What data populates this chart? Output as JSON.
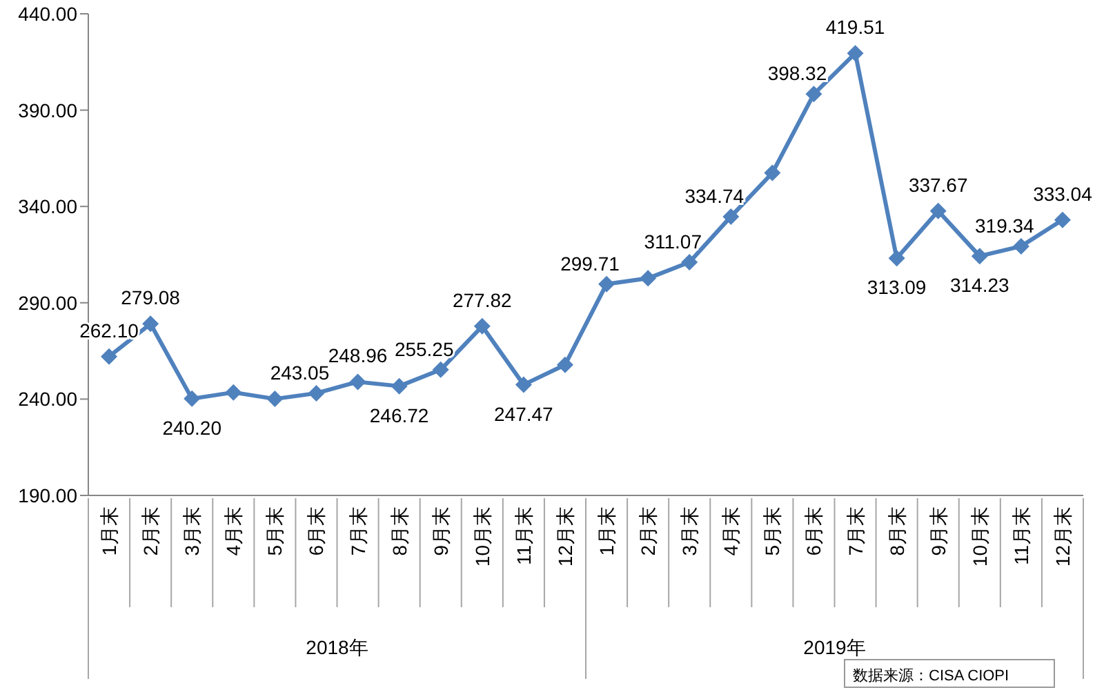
{
  "chart_data": {
    "type": "line",
    "categories": [
      "1月末",
      "2月末",
      "3月末",
      "4月末",
      "5月末",
      "6月末",
      "7月末",
      "8月末",
      "9月末",
      "10月末",
      "11月末",
      "12月末",
      "1月末",
      "2月末",
      "3月末",
      "4月末",
      "5月末",
      "6月末",
      "7月末",
      "8月末",
      "9月末",
      "10月末",
      "11月末",
      "12月末"
    ],
    "series": [
      {
        "color": "#4f81bd",
        "values": [
          262.1,
          279.08,
          240.2,
          243.5,
          240.1,
          243.05,
          248.96,
          246.72,
          255.25,
          277.82,
          247.47,
          257.8,
          299.71,
          302.7,
          311.07,
          334.74,
          357.4,
          398.32,
          419.51,
          313.09,
          337.67,
          314.23,
          319.34,
          333.04
        ],
        "value_labels": [
          "262.10",
          "279.08",
          "240.20",
          null,
          null,
          "243.05",
          "248.96",
          "246.72",
          "255.25",
          "277.82",
          "247.47",
          null,
          "299.71",
          null,
          "311.07",
          "334.74",
          null,
          "398.32",
          "419.51",
          "313.09",
          "337.67",
          "314.23",
          "319.34",
          "333.04"
        ]
      }
    ],
    "ylim": [
      190,
      440
    ],
    "yticks": [
      {
        "value": 190,
        "label": "190.00"
      },
      {
        "value": 240,
        "label": "240.00"
      },
      {
        "value": 290,
        "label": "290.00"
      },
      {
        "value": 340,
        "label": "340.00"
      },
      {
        "value": 390,
        "label": "390.00"
      },
      {
        "value": 440,
        "label": "440.00"
      }
    ],
    "annotations": [
      "2018年",
      "2019年",
      "数据来源：CISA CIOPI"
    ],
    "marker": "diamond",
    "line_style": "solid",
    "grid": false
  }
}
